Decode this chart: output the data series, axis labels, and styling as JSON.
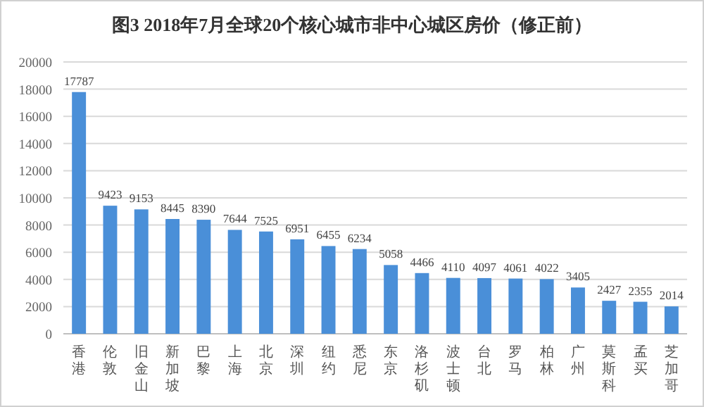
{
  "chart_data": {
    "type": "bar",
    "title": "图3  2018年7月全球20个核心城市非中心城区房价（修正前）",
    "categories": [
      "香港",
      "伦敦",
      "旧金山",
      "新加坡",
      "巴黎",
      "上海",
      "北京",
      "深圳",
      "纽约",
      "悉尼",
      "东京",
      "洛杉矶",
      "波士顿",
      "台北",
      "罗马",
      "柏林",
      "广州",
      "莫斯科",
      "孟买",
      "芝加哥"
    ],
    "values": [
      17787,
      9423,
      9153,
      8445,
      8390,
      7644,
      7525,
      6951,
      6455,
      6234,
      5058,
      4466,
      4110,
      4097,
      4061,
      4022,
      3405,
      2427,
      2355,
      2014
    ],
    "color": "#4a8fd8",
    "ylim": [
      0,
      20000
    ],
    "yticks": [
      0,
      2000,
      4000,
      6000,
      8000,
      10000,
      12000,
      14000,
      16000,
      18000,
      20000
    ],
    "grid": "y",
    "data_labels": true
  }
}
